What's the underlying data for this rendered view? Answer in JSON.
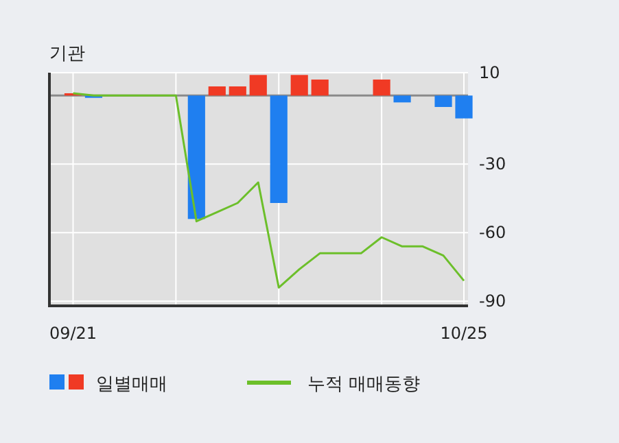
{
  "chart_data": {
    "type": "bar",
    "title": "기관",
    "categories": [
      "09/21",
      null,
      null,
      null,
      null,
      null,
      null,
      null,
      null,
      null,
      null,
      null,
      null,
      null,
      null,
      null,
      null,
      null,
      null,
      "10/25"
    ],
    "series": [
      {
        "name": "일별매매",
        "colors": [
          "#f03a24",
          "#1f7ff0",
          "#1f7ff0",
          "#1f7ff0",
          "#1f7ff0",
          "#1f7ff0",
          "#1f7ff0",
          "#f03a24",
          "#f03a24",
          "#f03a24",
          "#1f7ff0",
          "#f03a24",
          "#f03a24",
          "#1f7ff0",
          "#1f7ff0",
          "#f03a24",
          "#1f7ff0",
          "#1f7ff0",
          "#1f7ff0",
          "#1f7ff0"
        ],
        "values": [
          1,
          -1,
          0,
          0,
          0,
          0,
          -54,
          4,
          4,
          9,
          -47,
          9,
          7,
          0,
          0,
          7,
          -3,
          0,
          -5,
          -10
        ]
      },
      {
        "name": "누적 매매동향",
        "type": "line",
        "color": "#6cbf2a",
        "values": [
          1,
          0,
          0,
          0,
          0,
          0,
          -55,
          -51,
          -47,
          -38,
          -84,
          -76,
          -69,
          -69,
          -69,
          -62,
          -66,
          -66,
          -70,
          -81
        ]
      }
    ],
    "ylim": [
      -92,
      10
    ],
    "yticks": [
      10,
      -30,
      -60,
      -90
    ],
    "grid": true,
    "legend": "bottom"
  }
}
